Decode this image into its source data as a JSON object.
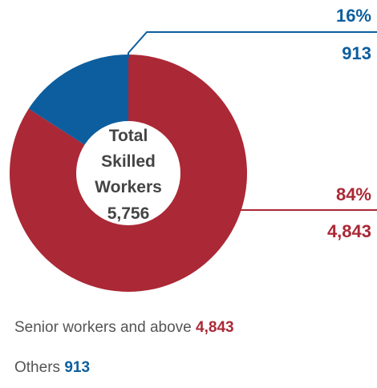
{
  "chart_data": {
    "type": "pie",
    "variant": "donut",
    "center_label": {
      "lines": [
        "Total",
        "Skilled",
        "Workers",
        "5,756"
      ]
    },
    "series": [
      {
        "name": "Senior workers and above",
        "value": 4843,
        "value_label": "4,843",
        "percent_label": "84%",
        "color": "#ab2836"
      },
      {
        "name": "Others",
        "value": 913,
        "value_label": "913",
        "percent_label": "16%",
        "color": "#0d5e9e"
      }
    ],
    "legend_placement": "bottom"
  }
}
